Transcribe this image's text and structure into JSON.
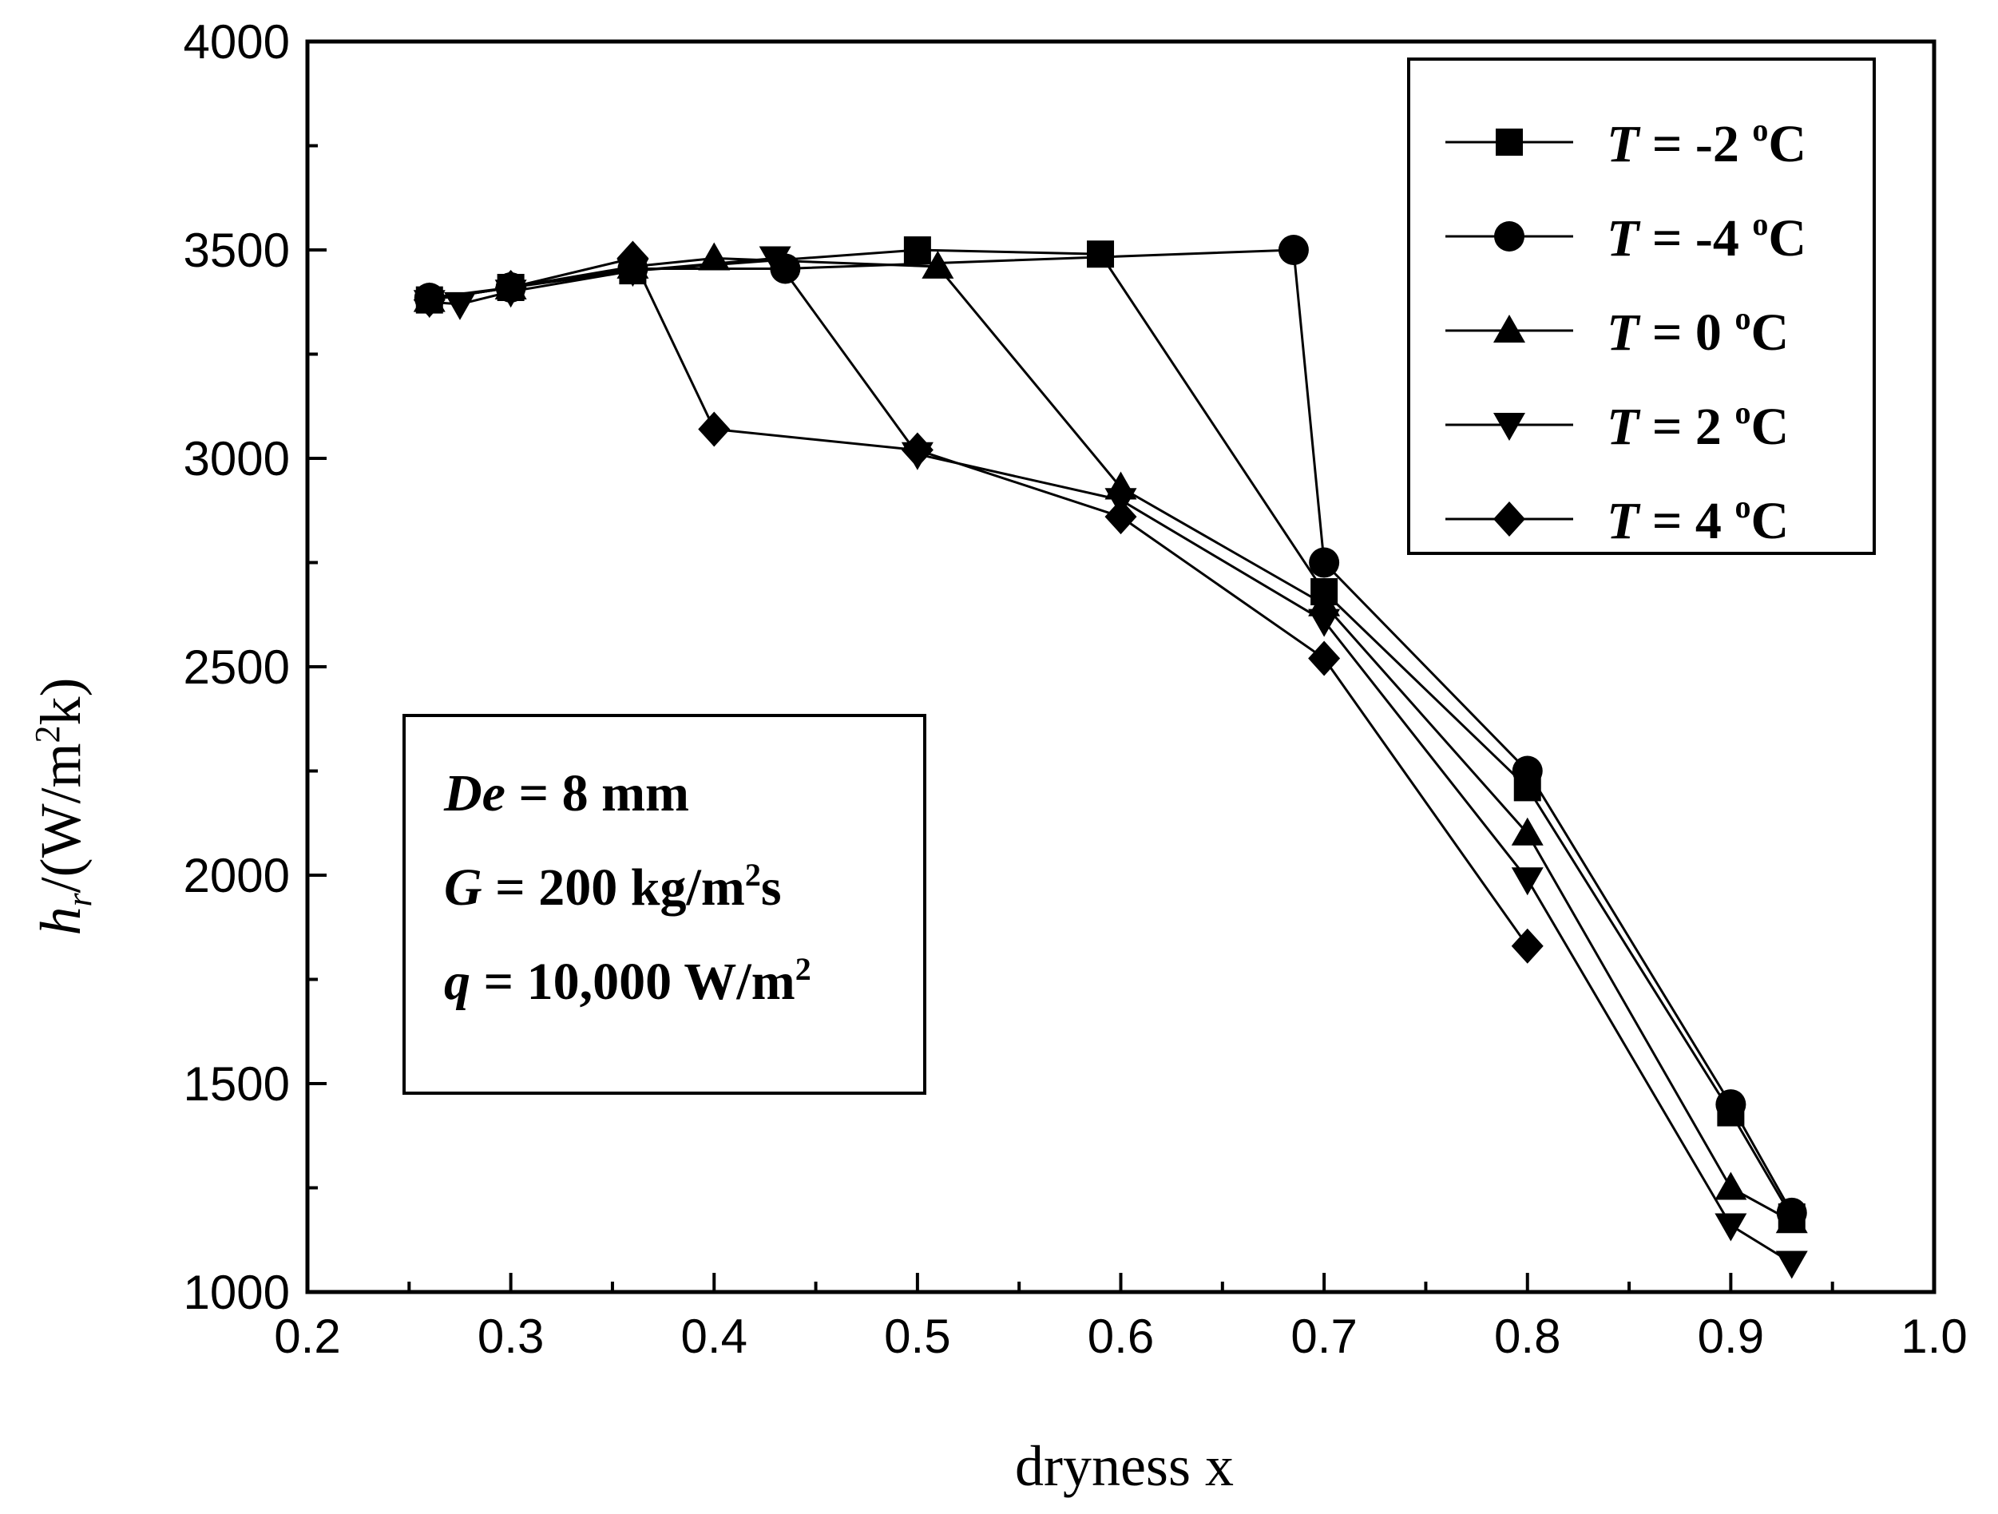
{
  "chart_data": {
    "type": "line",
    "title": "",
    "xlabel": "dryness x",
    "ylabel": {
      "symbol": "h",
      "subscript": "r",
      "unit_prefix": "/(W/m",
      "unit_exponent": "2",
      "unit_suffix": "k)"
    },
    "xlim": [
      0.2,
      1.0
    ],
    "ylim": [
      1000,
      4000
    ],
    "xticks": [
      0.2,
      0.3,
      0.4,
      0.5,
      0.6,
      0.7,
      0.8,
      0.9,
      1.0
    ],
    "xtick_labels": [
      "0.2",
      "0.3",
      "0.4",
      "0.5",
      "0.6",
      "0.7",
      "0.8",
      "0.9",
      "1.0"
    ],
    "yticks": [
      1000,
      1500,
      2000,
      2500,
      3000,
      3500,
      4000
    ],
    "ytick_labels": [
      "1000",
      "1500",
      "2000",
      "2500",
      "3000",
      "3500",
      "4000"
    ],
    "x_minor_step": 0.05,
    "y_minor_step": 250,
    "grid": false,
    "legend_position": "top-right",
    "series": [
      {
        "name": "T = -2 oC",
        "label_symbol": "T",
        "label_value": " = -2 ",
        "label_sup": "o",
        "label_unit": "C",
        "marker": "square",
        "x": [
          0.26,
          0.3,
          0.36,
          0.5,
          0.59,
          0.7,
          0.8,
          0.9,
          0.93
        ],
        "y": [
          3380,
          3410,
          3450,
          3500,
          3490,
          2680,
          2210,
          1430,
          1180
        ]
      },
      {
        "name": "T = -4 oC",
        "label_symbol": "T",
        "label_value": " = -4 ",
        "label_sup": "o",
        "label_unit": "C",
        "marker": "circle",
        "x": [
          0.26,
          0.3,
          0.36,
          0.435,
          0.685,
          0.7,
          0.8,
          0.9,
          0.93
        ],
        "y": [
          3385,
          3410,
          3455,
          3455,
          3500,
          2750,
          2250,
          1450,
          1190
        ]
      },
      {
        "name": "T = 0 oC",
        "label_symbol": "T",
        "label_value": " = 0 ",
        "label_sup": "o",
        "label_unit": "C",
        "marker": "triangle-up",
        "x": [
          0.26,
          0.3,
          0.36,
          0.4,
          0.51,
          0.6,
          0.7,
          0.8,
          0.9,
          0.93
        ],
        "y": [
          3380,
          3410,
          3460,
          3480,
          3460,
          2930,
          2650,
          2100,
          1250,
          1170
        ]
      },
      {
        "name": "T = 2 oC",
        "label_symbol": "T",
        "label_value": " = 2 ",
        "label_sup": "o",
        "label_unit": "C",
        "marker": "triangle-down",
        "x": [
          0.26,
          0.275,
          0.3,
          0.36,
          0.43,
          0.5,
          0.6,
          0.7,
          0.8,
          0.9,
          0.93
        ],
        "y": [
          3375,
          3370,
          3400,
          3450,
          3480,
          3010,
          2900,
          2610,
          1990,
          1160,
          1070
        ]
      },
      {
        "name": "T = 4 oC",
        "label_symbol": "T",
        "label_value": " = 4 ",
        "label_sup": "o",
        "label_unit": "C",
        "marker": "diamond",
        "x": [
          0.26,
          0.3,
          0.36,
          0.4,
          0.5,
          0.6,
          0.7,
          0.8
        ],
        "y": [
          3380,
          3410,
          3480,
          3070,
          3020,
          2860,
          2520,
          1830
        ]
      }
    ],
    "annotation": [
      {
        "symbol": "De",
        "rest": " = 8 mm",
        "sup": "",
        "tail": ""
      },
      {
        "symbol": "G",
        "rest": " = 200 kg/m",
        "sup": "2",
        "tail": "s"
      },
      {
        "symbol": "q",
        "rest": " = 10,000 W/m",
        "sup": "2",
        "tail": ""
      }
    ]
  }
}
